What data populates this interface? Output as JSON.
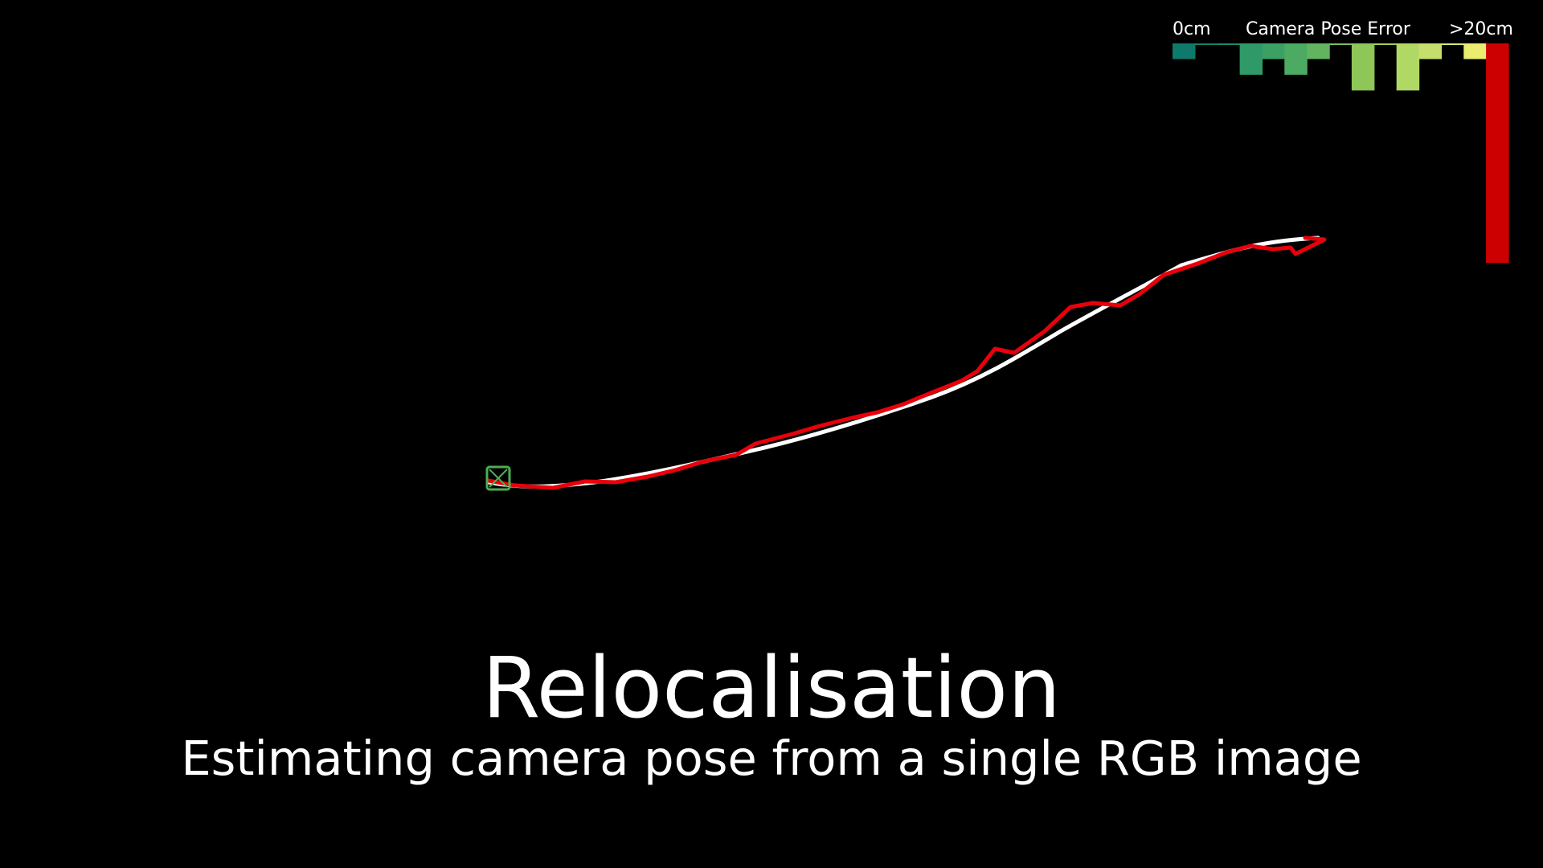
{
  "legend": {
    "min_label": "0cm",
    "title": "Camera Pose Error",
    "max_label": ">20cm",
    "bins": [
      {
        "color": "#0e7a6b",
        "value": 1
      },
      {
        "color": "#13806c",
        "value": 0
      },
      {
        "color": "#1c8a6c",
        "value": 0
      },
      {
        "color": "#2f9968",
        "value": 2
      },
      {
        "color": "#3ba064",
        "value": 1
      },
      {
        "color": "#4caa62",
        "value": 2
      },
      {
        "color": "#63b45f",
        "value": 1
      },
      {
        "color": "#79bd5a",
        "value": 0
      },
      {
        "color": "#8ec658",
        "value": 3
      },
      {
        "color": "#a2cf5c",
        "value": 0
      },
      {
        "color": "#b0d864",
        "value": 3
      },
      {
        "color": "#c5de6c",
        "value": 1
      },
      {
        "color": "#dbe673",
        "value": 0
      },
      {
        "color": "#eaed6e",
        "value": 1
      },
      {
        "color": "#cc0000",
        "value": 14
      }
    ]
  },
  "scene": {
    "ground_truth_color": "#ffffff",
    "estimate_color": "#e8000b",
    "camera_color": "#4caf50"
  },
  "title": "Relocalisation",
  "subtitle": "Estimating camera pose from a single RGB image"
}
